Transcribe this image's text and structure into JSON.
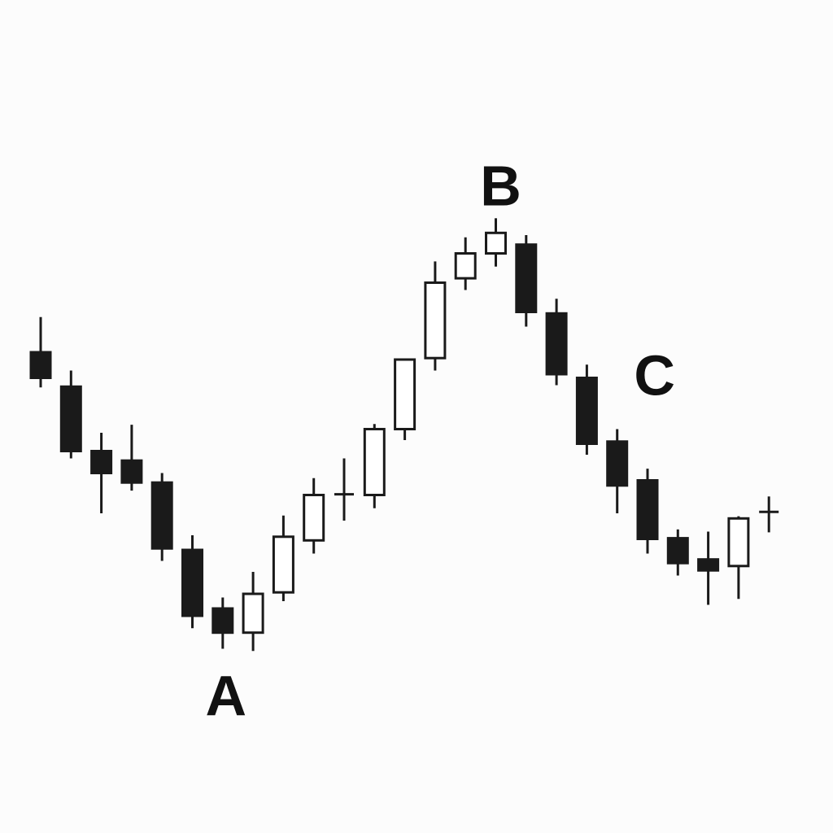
{
  "chart_data": {
    "type": "candlestick",
    "title": "",
    "xlabel": "",
    "ylabel": "",
    "grid": false,
    "legend": "none",
    "ylim": [
      0,
      100
    ],
    "colors": {
      "background": "#fcfcfc",
      "bearish_fill": "#1a1a1a",
      "bullish_fill": "#ffffff",
      "stroke": "#1a1a1a",
      "annotation": "#111111"
    },
    "candles": [
      {
        "open": 63.0,
        "high": 67.8,
        "low": 58.2,
        "close": 59.5
      },
      {
        "open": 58.3,
        "high": 60.5,
        "low": 48.5,
        "close": 49.5
      },
      {
        "open": 49.5,
        "high": 52.0,
        "low": 41.0,
        "close": 46.5
      },
      {
        "open": 48.2,
        "high": 53.1,
        "low": 44.1,
        "close": 45.2
      },
      {
        "open": 45.2,
        "high": 46.5,
        "low": 34.5,
        "close": 36.2
      },
      {
        "open": 36.0,
        "high": 38.0,
        "low": 25.3,
        "close": 27.0
      },
      {
        "open": 28.0,
        "high": 29.5,
        "low": 22.5,
        "close": 24.7
      },
      {
        "open": 24.7,
        "high": 33.0,
        "low": 22.2,
        "close": 30.0
      },
      {
        "open": 30.2,
        "high": 40.7,
        "low": 29.0,
        "close": 37.8
      },
      {
        "open": 37.3,
        "high": 45.8,
        "low": 35.5,
        "close": 43.5
      },
      {
        "open": 43.6,
        "high": 48.5,
        "low": 40.0,
        "close": 43.6
      },
      {
        "open": 43.5,
        "high": 53.2,
        "low": 41.7,
        "close": 52.5
      },
      {
        "open": 52.5,
        "high": 61.8,
        "low": 51.0,
        "close": 62.0
      },
      {
        "open": 62.2,
        "high": 75.4,
        "low": 60.5,
        "close": 72.5
      },
      {
        "open": 73.1,
        "high": 78.7,
        "low": 71.5,
        "close": 76.5
      },
      {
        "open": 76.5,
        "high": 81.3,
        "low": 74.7,
        "close": 79.3
      },
      {
        "open": 77.7,
        "high": 79.0,
        "low": 66.5,
        "close": 68.5
      },
      {
        "open": 68.3,
        "high": 70.3,
        "low": 58.5,
        "close": 60.0
      },
      {
        "open": 59.5,
        "high": 61.3,
        "low": 49.0,
        "close": 50.5
      },
      {
        "open": 50.8,
        "high": 52.5,
        "low": 41.0,
        "close": 44.8
      },
      {
        "open": 45.5,
        "high": 47.1,
        "low": 35.5,
        "close": 37.5
      },
      {
        "open": 37.6,
        "high": 38.8,
        "low": 32.5,
        "close": 34.2
      },
      {
        "open": 34.7,
        "high": 38.5,
        "low": 28.5,
        "close": 33.2
      },
      {
        "open": 33.8,
        "high": 40.6,
        "low": 29.3,
        "close": 40.3
      },
      {
        "open": 41.2,
        "high": 43.3,
        "low": 38.4,
        "close": 41.2
      }
    ],
    "annotations": [
      {
        "label": "A",
        "candle": 6,
        "position": "below"
      },
      {
        "label": "B",
        "candle": 15,
        "position": "above"
      },
      {
        "label": "C",
        "candle": 19,
        "position": "above"
      }
    ]
  }
}
